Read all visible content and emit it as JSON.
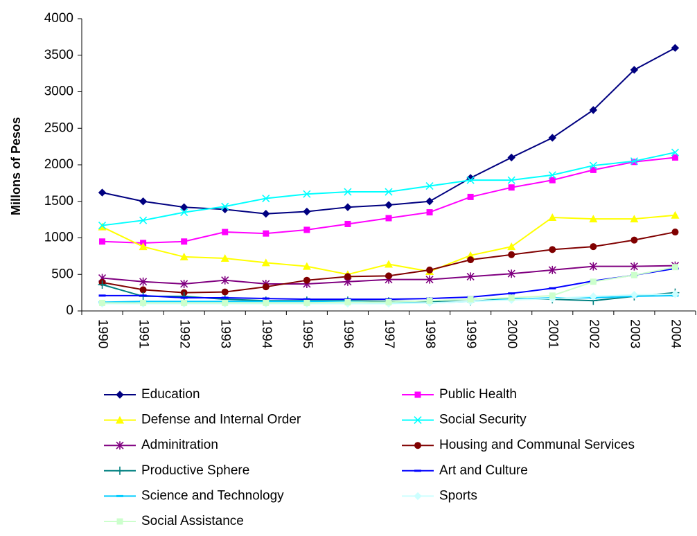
{
  "chart_data": {
    "type": "line",
    "y_label": "Millons of Pesos",
    "categories": [
      "1990",
      "1991",
      "1992",
      "1993",
      "1994",
      "1995",
      "1996",
      "1997",
      "1998",
      "1999",
      "2000",
      "2001",
      "2002",
      "2003",
      "2004"
    ],
    "ylim": [
      0,
      4000
    ],
    "yticks": [
      0,
      500,
      1000,
      1500,
      2000,
      2500,
      3000,
      3500,
      4000
    ],
    "grid": false,
    "series": [
      {
        "name": "Education",
        "color": "#000080",
        "marker": "diamond",
        "values": [
          1620,
          1500,
          1420,
          1390,
          1330,
          1360,
          1420,
          1450,
          1500,
          1820,
          2100,
          2370,
          2750,
          3300,
          3600
        ]
      },
      {
        "name": "Public Health",
        "color": "#ff00ff",
        "marker": "square",
        "values": [
          950,
          930,
          950,
          1080,
          1060,
          1110,
          1190,
          1270,
          1350,
          1560,
          1690,
          1790,
          1930,
          2040,
          2100
        ]
      },
      {
        "name": "Defense and Internal Order",
        "color": "#ffff00",
        "marker": "triangle",
        "values": [
          1150,
          880,
          740,
          720,
          660,
          610,
          500,
          640,
          540,
          760,
          880,
          1280,
          1260,
          1260,
          1310
        ]
      },
      {
        "name": "Social Security",
        "color": "#00ffff",
        "marker": "x",
        "values": [
          1170,
          1240,
          1350,
          1430,
          1540,
          1600,
          1630,
          1630,
          1710,
          1790,
          1790,
          1860,
          1990,
          2050,
          2170
        ]
      },
      {
        "name": "Adminitration",
        "color": "#800080",
        "marker": "asterisk",
        "values": [
          450,
          400,
          370,
          420,
          370,
          370,
          400,
          430,
          430,
          470,
          510,
          560,
          610,
          610,
          620
        ]
      },
      {
        "name": "Housing and Communal Services",
        "color": "#800000",
        "marker": "circle",
        "values": [
          390,
          290,
          250,
          260,
          330,
          420,
          470,
          480,
          560,
          700,
          770,
          840,
          880,
          970,
          1080
        ]
      },
      {
        "name": "Productive  Sphere",
        "color": "#008080",
        "marker": "plus",
        "values": [
          360,
          200,
          200,
          160,
          140,
          140,
          140,
          130,
          130,
          130,
          170,
          160,
          140,
          200,
          250
        ]
      },
      {
        "name": "Art and Culture",
        "color": "#0000ff",
        "marker": "dash",
        "values": [
          210,
          210,
          180,
          180,
          170,
          160,
          160,
          160,
          170,
          190,
          240,
          310,
          410,
          490,
          580
        ]
      },
      {
        "name": "Science and Technology",
        "color": "#00ccff",
        "marker": "dash",
        "values": [
          120,
          130,
          130,
          130,
          130,
          130,
          130,
          110,
          110,
          130,
          160,
          180,
          180,
          200,
          210
        ]
      },
      {
        "name": "Sports",
        "color": "#ccffff",
        "marker": "diamond",
        "values": [
          100,
          100,
          100,
          100,
          100,
          100,
          100,
          100,
          110,
          130,
          150,
          170,
          200,
          220,
          230
        ]
      },
      {
        "name": "Social Assistance",
        "color": "#ccffcc",
        "marker": "square",
        "values": [
          110,
          110,
          110,
          110,
          110,
          110,
          120,
          120,
          140,
          160,
          180,
          210,
          400,
          490,
          600
        ]
      }
    ]
  }
}
